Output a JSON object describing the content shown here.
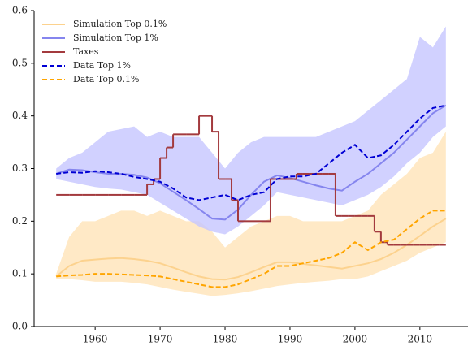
{
  "chart_data": {
    "type": "line",
    "x": [
      1954,
      1956,
      1958,
      1960,
      1962,
      1964,
      1966,
      1968,
      1970,
      1972,
      1974,
      1976,
      1978,
      1980,
      1982,
      1984,
      1986,
      1988,
      1990,
      1992,
      1994,
      1996,
      1998,
      2000,
      2002,
      2004,
      2006,
      2008,
      2010,
      2012,
      2014
    ],
    "xlim": [
      1950.6,
      2017.4
    ],
    "ylim": [
      0,
      0.6
    ],
    "xticks": [
      1960,
      1970,
      1980,
      1990,
      2000,
      2010
    ],
    "yticks": [
      {
        "value": 0,
        "label": "0.0"
      },
      0.1,
      0.2,
      0.3,
      0.4,
      0.5,
      0.6
    ],
    "legend": "upper left",
    "series": [
      {
        "name": "Simulation Top 0.1%",
        "color": "#fcd28e",
        "band_color": "#ffe3b8",
        "dash": false,
        "values": [
          0.095,
          0.115,
          0.125,
          0.127,
          0.129,
          0.13,
          0.128,
          0.125,
          0.12,
          0.112,
          0.103,
          0.095,
          0.09,
          0.089,
          0.094,
          0.103,
          0.113,
          0.122,
          0.122,
          0.119,
          0.116,
          0.113,
          0.11,
          0.115,
          0.12,
          0.128,
          0.14,
          0.155,
          0.172,
          0.19,
          0.205
        ],
        "upper": [
          0.1,
          0.17,
          0.2,
          0.2,
          0.21,
          0.22,
          0.22,
          0.21,
          0.22,
          0.21,
          0.2,
          0.2,
          0.18,
          0.15,
          0.17,
          0.19,
          0.2,
          0.21,
          0.21,
          0.2,
          0.2,
          0.2,
          0.2,
          0.21,
          0.22,
          0.25,
          0.27,
          0.29,
          0.32,
          0.33,
          0.37
        ],
        "lower": [
          0.09,
          0.09,
          0.088,
          0.085,
          0.085,
          0.085,
          0.083,
          0.08,
          0.075,
          0.07,
          0.066,
          0.062,
          0.058,
          0.06,
          0.063,
          0.067,
          0.072,
          0.077,
          0.08,
          0.083,
          0.085,
          0.087,
          0.09,
          0.09,
          0.095,
          0.105,
          0.115,
          0.125,
          0.14,
          0.15,
          0.16
        ]
      },
      {
        "name": "Simulation Top 1%",
        "color": "#8585ee",
        "band_color": "#c6c6ff",
        "dash": false,
        "values": [
          0.29,
          0.298,
          0.297,
          0.293,
          0.29,
          0.29,
          0.288,
          0.283,
          0.272,
          0.256,
          0.24,
          0.223,
          0.205,
          0.203,
          0.222,
          0.25,
          0.275,
          0.287,
          0.282,
          0.275,
          0.268,
          0.262,
          0.258,
          0.275,
          0.29,
          0.31,
          0.33,
          0.355,
          0.38,
          0.405,
          0.42
        ],
        "upper": [
          0.3,
          0.32,
          0.33,
          0.35,
          0.37,
          0.375,
          0.38,
          0.36,
          0.37,
          0.36,
          0.36,
          0.36,
          0.33,
          0.3,
          0.33,
          0.35,
          0.36,
          0.36,
          0.36,
          0.36,
          0.36,
          0.37,
          0.38,
          0.39,
          0.41,
          0.43,
          0.45,
          0.47,
          0.55,
          0.53,
          0.57
        ],
        "lower": [
          0.28,
          0.275,
          0.27,
          0.265,
          0.262,
          0.26,
          0.255,
          0.25,
          0.235,
          0.22,
          0.205,
          0.19,
          0.18,
          0.175,
          0.19,
          0.21,
          0.23,
          0.255,
          0.25,
          0.245,
          0.24,
          0.235,
          0.23,
          0.24,
          0.25,
          0.265,
          0.285,
          0.31,
          0.33,
          0.36,
          0.38
        ]
      },
      {
        "name": "Taxes",
        "color": "#a33a3e",
        "dash": false,
        "step": true,
        "x": [
          1954,
          1955,
          1956,
          1957,
          1958,
          1959,
          1960,
          1961,
          1962,
          1963,
          1964,
          1965,
          1966,
          1967,
          1968,
          1969,
          1970,
          1971,
          1972,
          1973,
          1974,
          1975,
          1976,
          1977,
          1978,
          1979,
          1980,
          1981,
          1982,
          1983,
          1984,
          1985,
          1986,
          1987,
          1988,
          1989,
          1990,
          1991,
          1992,
          1993,
          1994,
          1995,
          1996,
          1997,
          1998,
          1999,
          2000,
          2001,
          2002,
          2003,
          2004,
          2005,
          2006,
          2007,
          2008,
          2009,
          2010,
          2011,
          2012,
          2013,
          2014
        ],
        "values": [
          0.25,
          0.25,
          0.25,
          0.25,
          0.25,
          0.25,
          0.25,
          0.25,
          0.25,
          0.25,
          0.25,
          0.25,
          0.25,
          0.25,
          0.27,
          0.28,
          0.32,
          0.34,
          0.365,
          0.365,
          0.365,
          0.365,
          0.4,
          0.4,
          0.37,
          0.28,
          0.28,
          0.24,
          0.2,
          0.2,
          0.2,
          0.2,
          0.2,
          0.28,
          0.28,
          0.28,
          0.28,
          0.29,
          0.29,
          0.29,
          0.29,
          0.29,
          0.29,
          0.21,
          0.21,
          0.21,
          0.21,
          0.21,
          0.21,
          0.18,
          0.16,
          0.155,
          0.155,
          0.155,
          0.155,
          0.155,
          0.155,
          0.155,
          0.155,
          0.155,
          0.155
        ]
      },
      {
        "name": "Data Top 1%",
        "color": "#0000d4",
        "dash": true,
        "values": [
          0.29,
          0.293,
          0.292,
          0.295,
          0.293,
          0.29,
          0.284,
          0.28,
          0.275,
          0.262,
          0.245,
          0.24,
          0.245,
          0.25,
          0.24,
          0.25,
          0.255,
          0.28,
          0.285,
          0.285,
          0.29,
          0.31,
          0.33,
          0.345,
          0.32,
          0.325,
          0.345,
          0.37,
          0.395,
          0.415,
          0.42
        ]
      },
      {
        "name": "Data Top 0.1%",
        "color": "#ffa500",
        "dash": true,
        "values": [
          0.095,
          0.097,
          0.098,
          0.1,
          0.1,
          0.099,
          0.098,
          0.097,
          0.095,
          0.09,
          0.085,
          0.08,
          0.075,
          0.075,
          0.08,
          0.09,
          0.1,
          0.115,
          0.115,
          0.12,
          0.125,
          0.13,
          0.14,
          0.16,
          0.145,
          0.16,
          0.165,
          0.185,
          0.205,
          0.22,
          0.22
        ]
      }
    ]
  }
}
